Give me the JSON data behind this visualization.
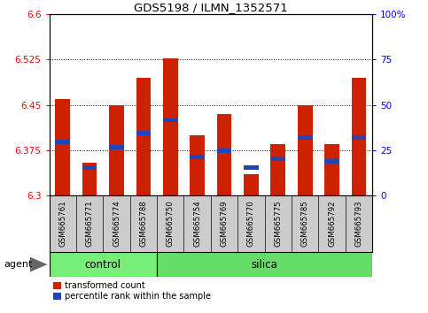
{
  "title": "GDS5198 / ILMN_1352571",
  "samples": [
    "GSM665761",
    "GSM665771",
    "GSM665774",
    "GSM665788",
    "GSM665750",
    "GSM665754",
    "GSM665769",
    "GSM665770",
    "GSM665775",
    "GSM665785",
    "GSM665792",
    "GSM665793"
  ],
  "bar_tops": [
    6.46,
    6.355,
    6.45,
    6.495,
    6.527,
    6.4,
    6.435,
    6.335,
    6.385,
    6.45,
    6.385,
    6.495
  ],
  "percentile_vals": [
    0.295,
    0.155,
    0.265,
    0.345,
    0.415,
    0.215,
    0.247,
    0.155,
    0.205,
    0.32,
    0.19,
    0.32
  ],
  "ymin": 6.3,
  "ymax": 6.6,
  "yticks_left": [
    6.3,
    6.375,
    6.45,
    6.525,
    6.6
  ],
  "yticks_right": [
    0,
    25,
    50,
    75,
    100
  ],
  "bar_color": "#CC2200",
  "blue_color": "#2244BB",
  "n_control": 4,
  "control_color": "#77EE77",
  "silica_color": "#66DD66",
  "agent_label": "agent",
  "control_label": "control",
  "silica_label": "silica",
  "legend_red": "transformed count",
  "legend_blue": "percentile rank within the sample",
  "label_bg_color": "#CCCCCC",
  "bar_width": 0.55
}
